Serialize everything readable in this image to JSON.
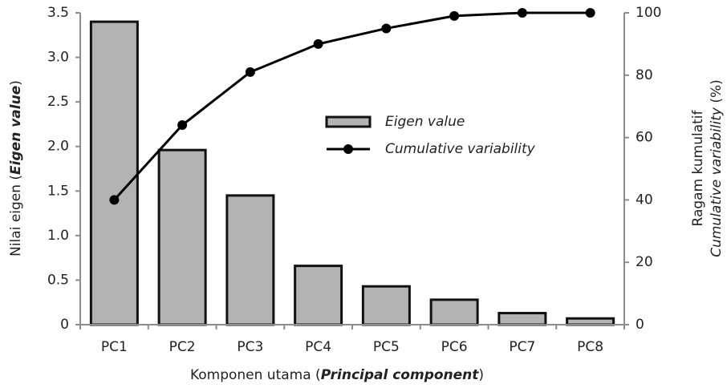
{
  "chart_data": {
    "type": "bar",
    "categories": [
      "PC1",
      "PC2",
      "PC3",
      "PC4",
      "PC5",
      "PC6",
      "PC7",
      "PC8"
    ],
    "series": [
      {
        "name": "Eigen value",
        "type": "bar",
        "color": "#b3b3b3",
        "values": [
          3.4,
          1.96,
          1.45,
          0.66,
          0.43,
          0.28,
          0.13,
          0.07
        ]
      },
      {
        "name": "Cumulative variability",
        "type": "line",
        "axis": "y2",
        "color": "#000000",
        "values": [
          40,
          64,
          81,
          90,
          95,
          99,
          100,
          100
        ]
      }
    ],
    "ylim": [
      0,
      3.5
    ],
    "yticks": [
      0,
      0.5,
      {
        "value": 1,
        "label": "1.0"
      },
      1.5,
      {
        "value": 2,
        "label": "2.0"
      },
      2.5,
      {
        "value": 3,
        "label": "3.0"
      },
      3.5
    ],
    "y2lim": [
      0,
      100
    ],
    "y2ticks": [
      0,
      20,
      40,
      60,
      80,
      100
    ],
    "x_label": [
      "Komponen utama (",
      "Principal component",
      ")"
    ],
    "y_label": [
      "Nilai eigen (",
      "Eigen value",
      ")"
    ],
    "y2_label": [
      [
        "Ragam kumulatif"
      ],
      [
        "Cumulative variability",
        " (%)"
      ]
    ],
    "legend": "center"
  }
}
